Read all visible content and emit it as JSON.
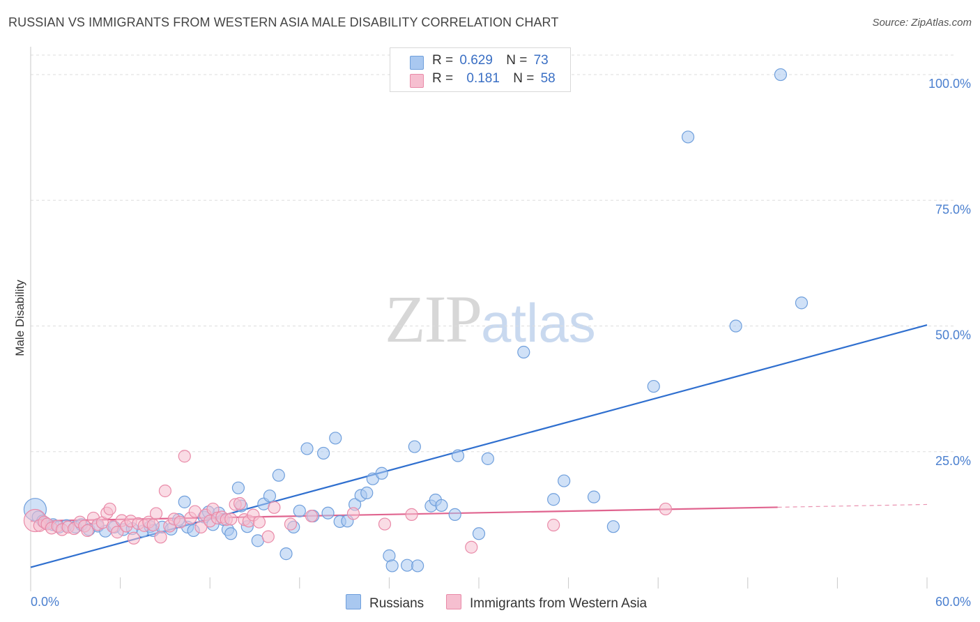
{
  "title": "RUSSIAN VS IMMIGRANTS FROM WESTERN ASIA MALE DISABILITY CORRELATION CHART",
  "source": "Source: ZipAtlas.com",
  "watermark": {
    "zip": "ZIP",
    "atlas": "atlas"
  },
  "legend": {
    "rows": [
      {
        "r_label": "R =",
        "r_value": "0.629",
        "n_label": "N =",
        "n_value": "73"
      },
      {
        "r_label": "R =",
        "r_value": "0.181",
        "n_label": "N =",
        "n_value": "58"
      }
    ]
  },
  "bottom_legend": {
    "series1": "Russians",
    "series2": "Immigrants from Western Asia"
  },
  "colors": {
    "blue_fill": "#a9c8f0",
    "blue_stroke": "#6f9fdc",
    "blue_line": "#2f6fcf",
    "pink_fill": "#f6bfd0",
    "pink_stroke": "#e98aa8",
    "pink_line": "#e0648f",
    "grid": "#dddddd",
    "tick_text": "#4a7fcf"
  },
  "chart_data": {
    "type": "scatter",
    "title": "RUSSIAN VS IMMIGRANTS FROM WESTERN ASIA MALE DISABILITY CORRELATION CHART",
    "xlabel": "",
    "ylabel": "Male Disability",
    "xlim": [
      0,
      60
    ],
    "ylim": [
      0,
      105
    ],
    "x_tick_labels": [
      "0.0%",
      "60.0%"
    ],
    "y_ticks": [
      {
        "value": 25,
        "label": "25.0%"
      },
      {
        "value": 50,
        "label": "50.0%"
      },
      {
        "value": 75,
        "label": "75.0%"
      },
      {
        "value": 100,
        "label": "100.0%"
      }
    ],
    "series": [
      {
        "name": "Russians",
        "r": 0.629,
        "n": 73,
        "trend": {
          "x": [
            0,
            60
          ],
          "y": [
            2.0,
            50.2
          ],
          "solid_until": 60
        },
        "points": [
          {
            "x": 0.3,
            "y": 13.5,
            "big": true
          },
          {
            "x": 0.5,
            "y": 12.0
          },
          {
            "x": 0.8,
            "y": 11.2
          },
          {
            "x": 1.0,
            "y": 10.8
          },
          {
            "x": 1.5,
            "y": 10.5
          },
          {
            "x": 1.9,
            "y": 10.0
          },
          {
            "x": 2.4,
            "y": 10.3
          },
          {
            "x": 3.0,
            "y": 10.0
          },
          {
            "x": 3.4,
            "y": 10.5
          },
          {
            "x": 3.9,
            "y": 9.5
          },
          {
            "x": 4.5,
            "y": 10.2
          },
          {
            "x": 5.0,
            "y": 9.2
          },
          {
            "x": 5.6,
            "y": 10.0
          },
          {
            "x": 6.2,
            "y": 9.5
          },
          {
            "x": 6.8,
            "y": 9.7
          },
          {
            "x": 7.5,
            "y": 9.2
          },
          {
            "x": 8.0,
            "y": 10.1
          },
          {
            "x": 8.2,
            "y": 9.3
          },
          {
            "x": 8.8,
            "y": 10.0
          },
          {
            "x": 9.4,
            "y": 9.6
          },
          {
            "x": 9.9,
            "y": 11.5
          },
          {
            "x": 10.3,
            "y": 15.0
          },
          {
            "x": 10.5,
            "y": 10.0
          },
          {
            "x": 10.9,
            "y": 9.3
          },
          {
            "x": 11.6,
            "y": 12.0
          },
          {
            "x": 11.9,
            "y": 13.0
          },
          {
            "x": 12.2,
            "y": 10.5
          },
          {
            "x": 12.6,
            "y": 12.8
          },
          {
            "x": 12.9,
            "y": 11.5
          },
          {
            "x": 13.2,
            "y": 9.5
          },
          {
            "x": 13.4,
            "y": 8.7
          },
          {
            "x": 13.9,
            "y": 17.8
          },
          {
            "x": 14.1,
            "y": 14.2
          },
          {
            "x": 14.5,
            "y": 10.1
          },
          {
            "x": 15.2,
            "y": 7.3
          },
          {
            "x": 15.6,
            "y": 14.6
          },
          {
            "x": 16.0,
            "y": 16.2
          },
          {
            "x": 16.6,
            "y": 20.3
          },
          {
            "x": 17.1,
            "y": 4.7
          },
          {
            "x": 17.6,
            "y": 10.0
          },
          {
            "x": 18.0,
            "y": 13.2
          },
          {
            "x": 18.5,
            "y": 25.6
          },
          {
            "x": 18.9,
            "y": 12.2
          },
          {
            "x": 19.6,
            "y": 24.7
          },
          {
            "x": 19.9,
            "y": 12.8
          },
          {
            "x": 20.4,
            "y": 27.7
          },
          {
            "x": 20.7,
            "y": 11.1
          },
          {
            "x": 21.2,
            "y": 11.2
          },
          {
            "x": 21.7,
            "y": 14.5
          },
          {
            "x": 22.1,
            "y": 16.3
          },
          {
            "x": 22.5,
            "y": 16.8
          },
          {
            "x": 22.9,
            "y": 19.6
          },
          {
            "x": 23.5,
            "y": 20.7
          },
          {
            "x": 24.0,
            "y": 4.3
          },
          {
            "x": 24.2,
            "y": 2.3
          },
          {
            "x": 25.2,
            "y": 2.4
          },
          {
            "x": 25.7,
            "y": 26.0
          },
          {
            "x": 25.9,
            "y": 2.3
          },
          {
            "x": 26.8,
            "y": 14.2
          },
          {
            "x": 27.1,
            "y": 15.4
          },
          {
            "x": 27.5,
            "y": 14.3
          },
          {
            "x": 28.4,
            "y": 12.5
          },
          {
            "x": 28.6,
            "y": 24.2
          },
          {
            "x": 30.0,
            "y": 8.7
          },
          {
            "x": 30.6,
            "y": 23.6
          },
          {
            "x": 33.0,
            "y": 44.8
          },
          {
            "x": 35.0,
            "y": 15.5
          },
          {
            "x": 35.7,
            "y": 19.2
          },
          {
            "x": 37.7,
            "y": 16.0
          },
          {
            "x": 39.0,
            "y": 10.1
          },
          {
            "x": 41.7,
            "y": 38.0
          },
          {
            "x": 44.0,
            "y": 87.6
          },
          {
            "x": 47.2,
            "y": 50.0
          },
          {
            "x": 50.2,
            "y": 100.0
          },
          {
            "x": 51.6,
            "y": 54.6
          }
        ]
      },
      {
        "name": "Immigrants from Western Asia",
        "r": 0.181,
        "n": 58,
        "trend": {
          "x": [
            0,
            60
          ],
          "y": [
            11.2,
            14.5
          ],
          "solid_until": 50
        },
        "points": [
          {
            "x": 0.3,
            "y": 11.3,
            "big": true
          },
          {
            "x": 0.6,
            "y": 10.3
          },
          {
            "x": 0.9,
            "y": 11.0
          },
          {
            "x": 1.1,
            "y": 10.6
          },
          {
            "x": 1.4,
            "y": 9.8
          },
          {
            "x": 1.8,
            "y": 10.2
          },
          {
            "x": 2.1,
            "y": 9.5
          },
          {
            "x": 2.5,
            "y": 10.0
          },
          {
            "x": 2.9,
            "y": 9.7
          },
          {
            "x": 3.3,
            "y": 11.0
          },
          {
            "x": 3.6,
            "y": 10.2
          },
          {
            "x": 3.8,
            "y": 9.3
          },
          {
            "x": 4.2,
            "y": 11.8
          },
          {
            "x": 4.5,
            "y": 10.5
          },
          {
            "x": 4.8,
            "y": 10.9
          },
          {
            "x": 5.1,
            "y": 12.8
          },
          {
            "x": 5.3,
            "y": 13.6
          },
          {
            "x": 5.5,
            "y": 10.1
          },
          {
            "x": 5.8,
            "y": 9.0
          },
          {
            "x": 6.1,
            "y": 11.3
          },
          {
            "x": 6.4,
            "y": 10.2
          },
          {
            "x": 6.7,
            "y": 11.2
          },
          {
            "x": 6.9,
            "y": 7.8
          },
          {
            "x": 7.2,
            "y": 10.7
          },
          {
            "x": 7.6,
            "y": 10.3
          },
          {
            "x": 7.9,
            "y": 11.0
          },
          {
            "x": 8.2,
            "y": 10.4
          },
          {
            "x": 8.4,
            "y": 12.7
          },
          {
            "x": 8.7,
            "y": 8.0
          },
          {
            "x": 9.0,
            "y": 17.2
          },
          {
            "x": 9.3,
            "y": 10.2
          },
          {
            "x": 9.6,
            "y": 11.6
          },
          {
            "x": 10.0,
            "y": 11.0
          },
          {
            "x": 10.3,
            "y": 24.1
          },
          {
            "x": 10.7,
            "y": 11.8
          },
          {
            "x": 11.0,
            "y": 13.1
          },
          {
            "x": 11.4,
            "y": 10.0
          },
          {
            "x": 11.7,
            "y": 12.4
          },
          {
            "x": 12.0,
            "y": 11.2
          },
          {
            "x": 12.2,
            "y": 13.6
          },
          {
            "x": 12.5,
            "y": 11.8
          },
          {
            "x": 12.8,
            "y": 12.0
          },
          {
            "x": 13.1,
            "y": 11.5
          },
          {
            "x": 13.4,
            "y": 11.6
          },
          {
            "x": 13.7,
            "y": 14.5
          },
          {
            "x": 14.0,
            "y": 14.7
          },
          {
            "x": 14.3,
            "y": 11.5
          },
          {
            "x": 14.6,
            "y": 11.2
          },
          {
            "x": 14.9,
            "y": 12.4
          },
          {
            "x": 15.3,
            "y": 11.0
          },
          {
            "x": 15.9,
            "y": 8.1
          },
          {
            "x": 16.3,
            "y": 13.9
          },
          {
            "x": 17.4,
            "y": 10.6
          },
          {
            "x": 18.8,
            "y": 12.2
          },
          {
            "x": 21.6,
            "y": 12.7
          },
          {
            "x": 23.7,
            "y": 10.6
          },
          {
            "x": 25.5,
            "y": 12.5
          },
          {
            "x": 29.5,
            "y": 6.0
          },
          {
            "x": 35.0,
            "y": 10.4
          },
          {
            "x": 42.5,
            "y": 13.6
          }
        ]
      }
    ]
  }
}
